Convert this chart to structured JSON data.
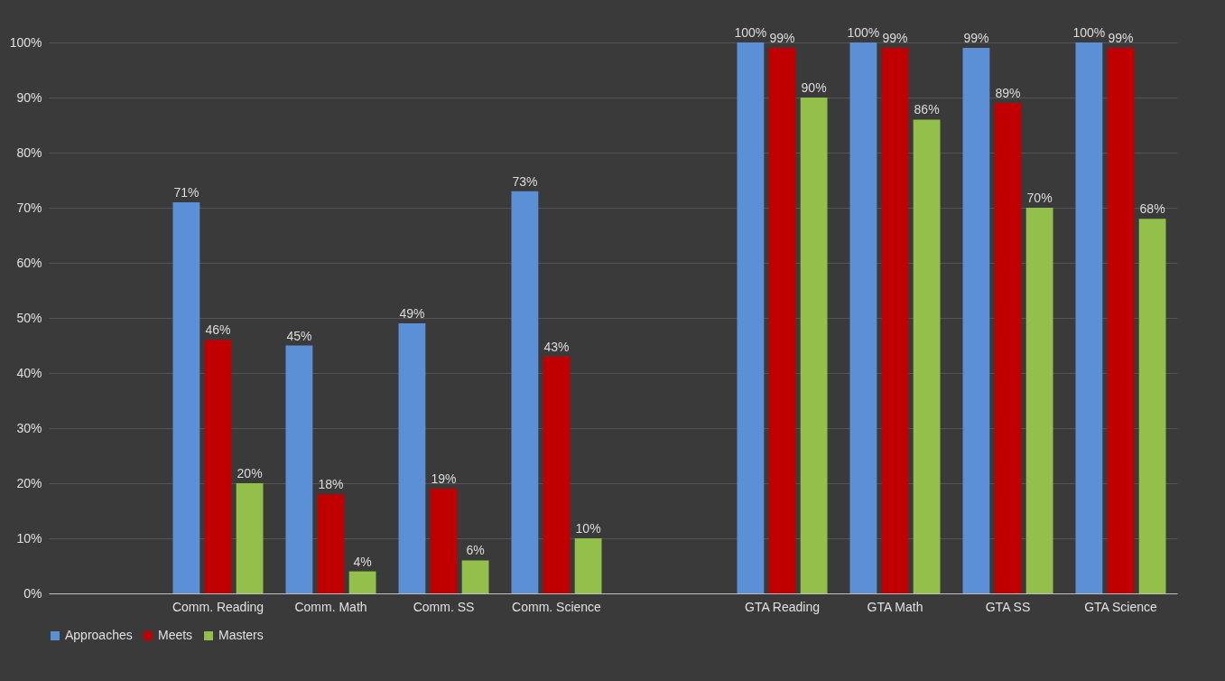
{
  "chart_data": {
    "type": "bar",
    "categories": [
      null,
      "Comm. Reading",
      "Comm. Math",
      "Comm. SS",
      "Comm. Science",
      null,
      "GTA Reading",
      "GTA Math",
      "GTA SS",
      "GTA Science"
    ],
    "series": [
      {
        "name": "Approaches",
        "color": "#5b8fd6",
        "values": [
          null,
          71,
          45,
          49,
          73,
          null,
          100,
          100,
          99,
          100
        ],
        "value_labels": [
          null,
          "71%",
          "45%",
          "49%",
          "73%",
          null,
          "100%",
          "100%",
          "99%",
          "100%"
        ]
      },
      {
        "name": "Meets",
        "color": "#c00000",
        "values": [
          null,
          46,
          18,
          19,
          43,
          null,
          99,
          99,
          89,
          99
        ],
        "value_labels": [
          null,
          "46%",
          "18%",
          "19%",
          "43%",
          null,
          "99%",
          "99%",
          "89%",
          "99%"
        ]
      },
      {
        "name": "Masters",
        "color": "#92c04a",
        "values": [
          null,
          20,
          4,
          6,
          10,
          null,
          90,
          86,
          70,
          68
        ],
        "value_labels": [
          null,
          "20%",
          "4%",
          "6%",
          "10%",
          null,
          "90%",
          "86%",
          "70%",
          "68%"
        ]
      }
    ],
    "ylim": [
      0,
      100
    ],
    "yticks": [
      {
        "value": 0,
        "label": "0%"
      },
      {
        "value": 10,
        "label": "10%"
      },
      {
        "value": 20,
        "label": "20%"
      },
      {
        "value": 30,
        "label": "30%"
      },
      {
        "value": 40,
        "label": "40%"
      },
      {
        "value": 50,
        "label": "50%"
      },
      {
        "value": 60,
        "label": "60%"
      },
      {
        "value": 70,
        "label": "70%"
      },
      {
        "value": 80,
        "label": "80%"
      },
      {
        "value": 90,
        "label": "90%"
      },
      {
        "value": 100,
        "label": "100%"
      }
    ],
    "grid": "y",
    "legend": "bottom"
  }
}
